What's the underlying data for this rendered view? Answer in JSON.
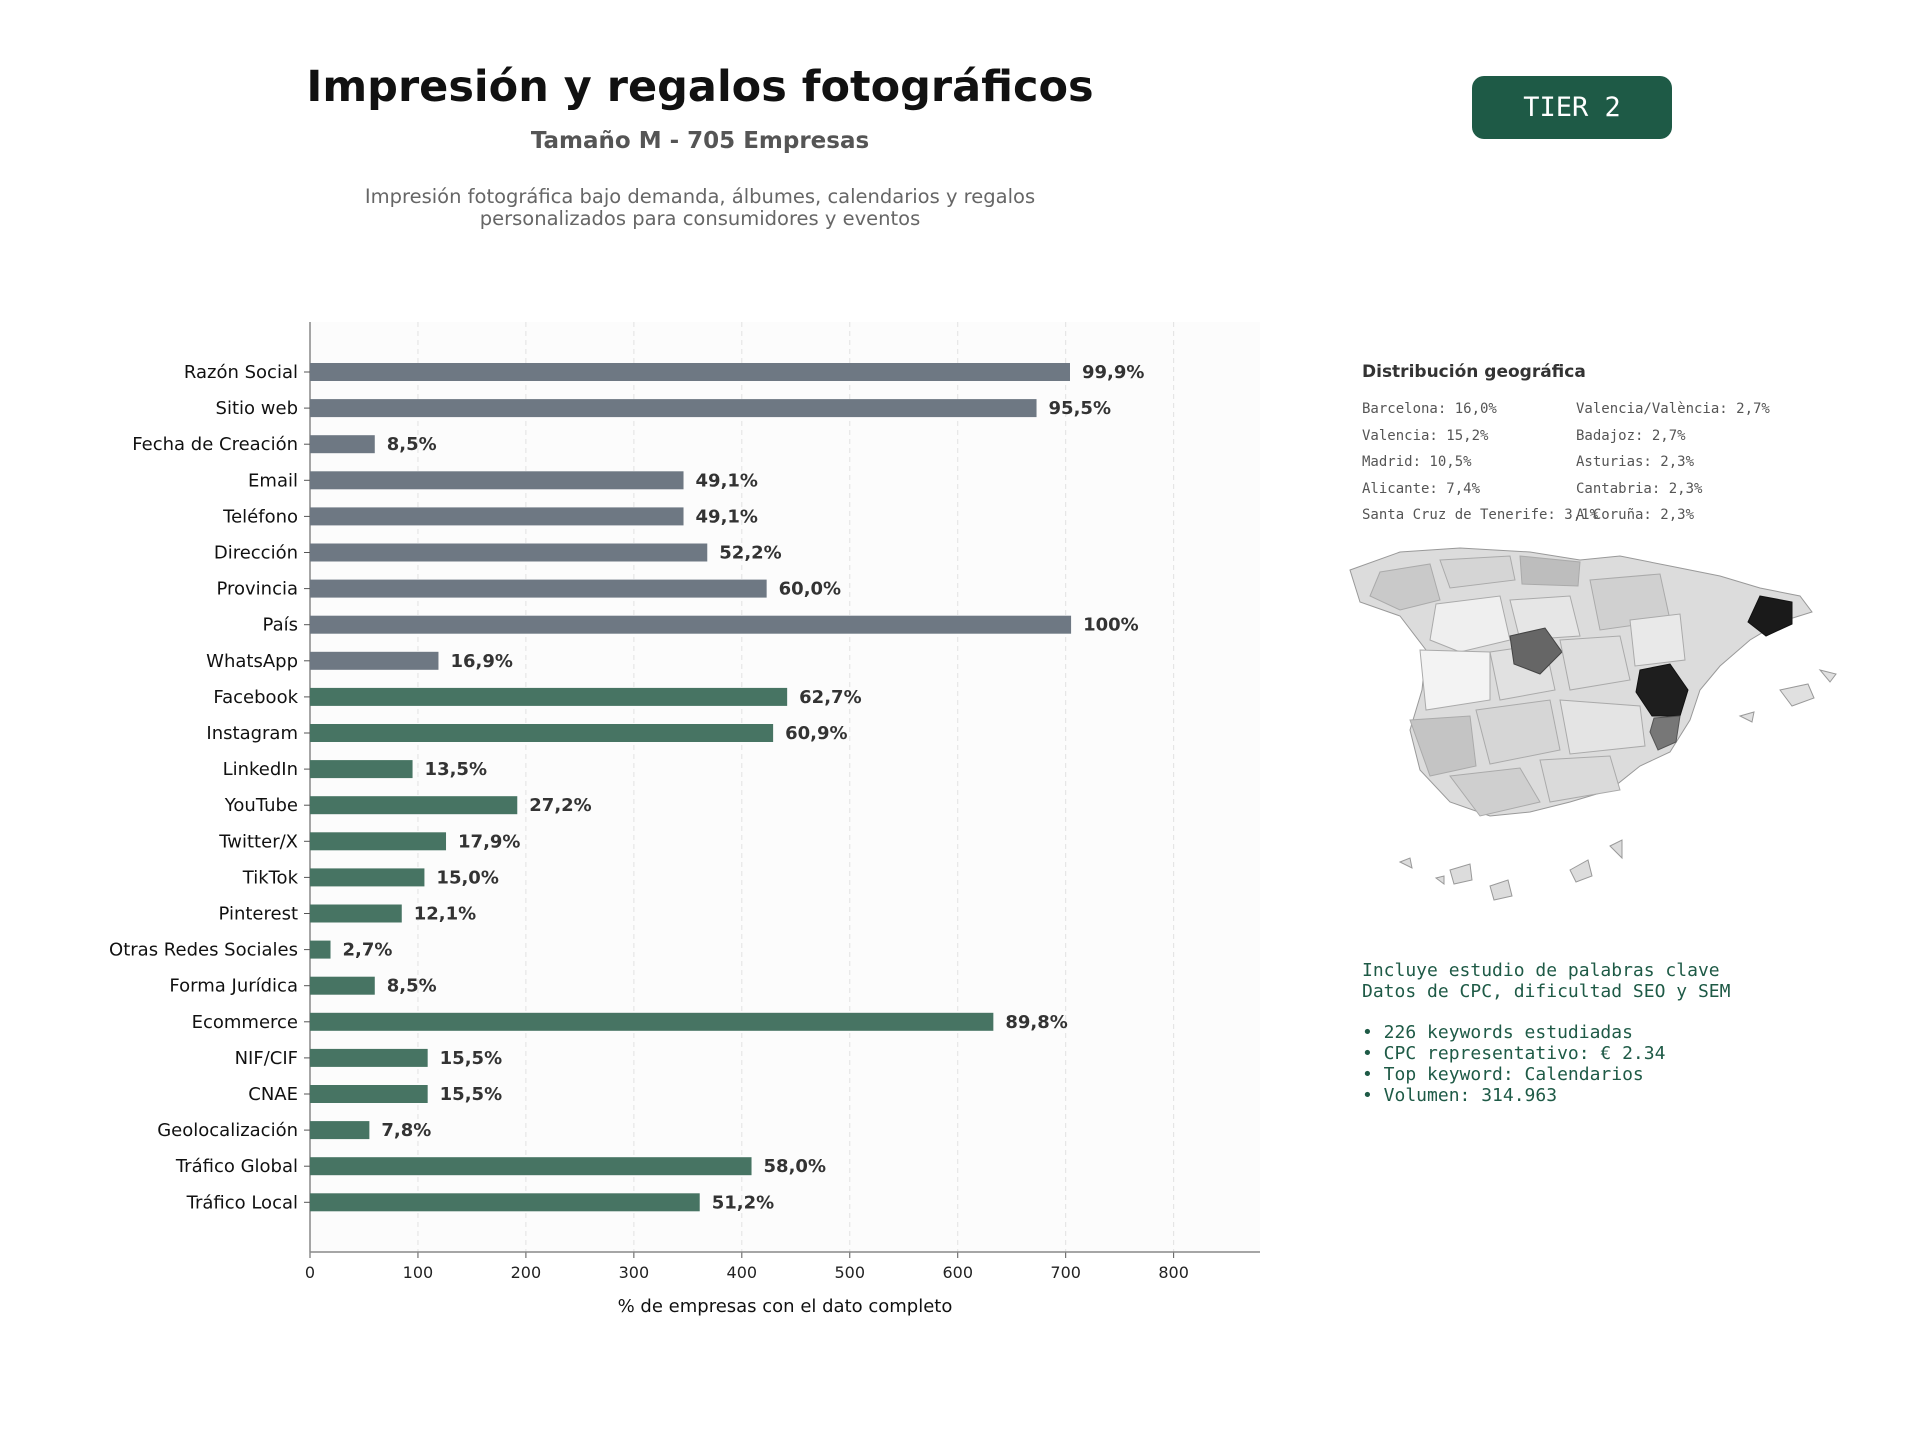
{
  "header": {
    "title": "Impresión y regalos fotográficos",
    "subtitle": "Tamaño M - 705 Empresas",
    "description_line1": "Impresión fotográfica bajo demanda, álbumes, calendarios y regalos",
    "description_line2": "personalizados para consumidores y eventos",
    "tier_badge": "TIER 2"
  },
  "colors": {
    "basic_bar": "#6e7883",
    "social_bar": "#477463",
    "badge": "#1e5a46",
    "keyword_text": "#1e5a46"
  },
  "chart_data": {
    "type": "bar",
    "orientation": "horizontal",
    "xlabel": "% de empresas con el dato completo",
    "xlim": [
      0,
      880
    ],
    "xticks": [
      0,
      100,
      200,
      300,
      400,
      500,
      600,
      700,
      800
    ],
    "grid": "vertical dashed",
    "categories": [
      "Razón Social",
      "Sitio web",
      "Fecha de Creación",
      "Email",
      "Teléfono",
      "Dirección",
      "Provincia",
      "País",
      "WhatsApp",
      "Facebook",
      "Instagram",
      "LinkedIn",
      "YouTube",
      "Twitter/X",
      "TikTok",
      "Pinterest",
      "Otras Redes Sociales",
      "Forma Jurídica",
      "Ecommerce",
      "NIF/CIF",
      "CNAE",
      "Geolocalización",
      "Tráfico Global",
      "Tráfico Local"
    ],
    "values": [
      704,
      673,
      60,
      346,
      346,
      368,
      423,
      705,
      119,
      442,
      429,
      95,
      192,
      126,
      106,
      85,
      19,
      60,
      633,
      109,
      109,
      55,
      409,
      361
    ],
    "labels": [
      "99,9%",
      "95,5%",
      "8,5%",
      "49,1%",
      "49,1%",
      "52,2%",
      "60,0%",
      "100%",
      "16,9%",
      "62,7%",
      "60,9%",
      "13,5%",
      "27,2%",
      "17,9%",
      "15,0%",
      "12,1%",
      "2,7%",
      "8,5%",
      "89,8%",
      "15,5%",
      "15,5%",
      "7,8%",
      "58,0%",
      "51,2%"
    ],
    "groups": [
      "basic",
      "basic",
      "basic",
      "basic",
      "basic",
      "basic",
      "basic",
      "basic",
      "basic",
      "social",
      "social",
      "social",
      "social",
      "social",
      "social",
      "social",
      "social",
      "social",
      "social",
      "social",
      "social",
      "social",
      "social",
      "social"
    ]
  },
  "geo": {
    "title": "Distribución geográfica",
    "left": [
      "Barcelona: 16,0%",
      "Valencia: 15,2%",
      "Madrid: 10,5%",
      "Alicante: 7,4%",
      "Santa Cruz de Tenerife: 3,1%"
    ],
    "right": [
      "Valencia/València: 2,7%",
      "Badajoz: 2,7%",
      "Asturias: 2,3%",
      "Cantabria: 2,3%",
      "A Coruña: 2,3%"
    ]
  },
  "keywords": {
    "line1": "Incluye estudio de palabras clave",
    "line2": "Datos de CPC, dificultad SEO y SEM",
    "bullets": [
      "• 226 keywords estudiadas",
      "• CPC representativo: € 2.34",
      "• Top keyword: Calendarios",
      "• Volumen: 314.963"
    ]
  }
}
